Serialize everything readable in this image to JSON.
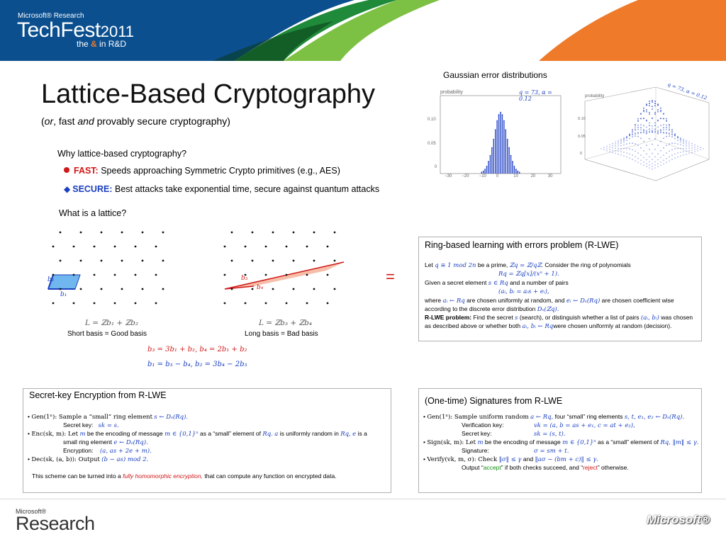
{
  "header": {
    "msr_label": "Microsoft® Research",
    "techfest": "TechFest",
    "year": "2011",
    "tag_the": "the",
    "tag_amp": "&",
    "tag_rest": "in R&D"
  },
  "title": "Lattice-Based Cryptography",
  "subtitle": {
    "or": "or",
    "fast": ", fast",
    "and": "and",
    "rest": "provably secure cryptography)"
  },
  "why": {
    "heading": "Why lattice-based cryptography?",
    "fast_label": "FAST:",
    "fast_text": "Speeds approaching Symmetric  Crypto primitives (e.g., AES)",
    "secure_label": "SECURE:",
    "secure_text": "Best attacks take exponential time, secure against quantum attacks"
  },
  "what_heading": "What is a lattice?",
  "lattice": {
    "left_formula": "L = ℤb₁ + ℤb₂",
    "left_caption": "Short basis = Good basis",
    "right_formula": "L = ℤb₃ + ℤb₄",
    "right_caption": "Long basis = Bad basis",
    "eq1": "b₃ = 3b₁ + b₂,  b₄ = 2b₁ + b₂",
    "eq2": "b₁ = b₃ − b₄,  b₂ = 3b₄ − 2b₃",
    "labels": {
      "b1": "b₁",
      "b2": "b₂",
      "b3": "b₃",
      "b4": "b₄"
    },
    "equals": "="
  },
  "gaussian": {
    "title": "Gaussian error distributions",
    "ylabel": "probability",
    "param_label": "q = 73, α = 0.12",
    "yticks": [
      "0.10",
      "0.05",
      "0"
    ],
    "xticks": [
      "−30",
      "−20",
      "−10",
      "0",
      "10",
      "20",
      "30"
    ],
    "right_ylabel": "probability",
    "right_param": "q = 73, α = 0.12",
    "right_yticks": [
      "0.10",
      "0.05",
      "0"
    ]
  },
  "chart_data": {
    "type": "bar",
    "ylabel": "probability",
    "annotation": "q = 73, α = 0.12",
    "xlim": [
      -35,
      35
    ],
    "ylim": [
      0,
      0.13
    ],
    "x": [
      -11,
      -10,
      -9,
      -8,
      -7,
      -6,
      -5,
      -4,
      -3,
      -2,
      -1,
      0,
      1,
      2,
      3,
      4,
      5,
      6,
      7,
      8,
      9,
      10,
      11
    ],
    "values": [
      0.002,
      0.004,
      0.007,
      0.012,
      0.02,
      0.03,
      0.043,
      0.057,
      0.073,
      0.088,
      0.098,
      0.102,
      0.098,
      0.088,
      0.073,
      0.057,
      0.043,
      0.03,
      0.02,
      0.012,
      0.007,
      0.004,
      0.002
    ]
  },
  "rlwe": {
    "title": "Ring-based learning with errors problem (R-LWE)",
    "l1a": "Let",
    "l1q": "q ≡ 1 mod 2n",
    "l1b": "be a prime,",
    "l1z": "ℤq = ℤ/qℤ",
    "l1c": ". Consider the ring of polynomials",
    "l2": "Rq = ℤq[x]/(xⁿ + 1).",
    "l3a": "Given a secret element",
    "l3s": "s ∈ Rq",
    "l3b": "and a number of pairs",
    "l4": "(aᵢ, bᵢ = aᵢs + eᵢ),",
    "l5a": "where",
    "l5m1": "aᵢ ← Rq",
    "l5b": "are chosen uniformly at random, and",
    "l5m2": "eᵢ ← Dₛ(Rq)",
    "l5c": "are chosen coefficient wise",
    "l6a": "according to the discrete error distribution",
    "l6m": "Dₛ(ℤq).",
    "l7bold": "R-LWE problem:",
    "l7a": "Find the secret",
    "l7m1": "s",
    "l7b": "(search), or distinguish whether a list of pairs",
    "l7m2": "(aᵢ, bᵢ)",
    "l7c": "was chosen",
    "l8a": "as described above or whether both",
    "l8m": "aᵢ, bᵢ ← Rq",
    "l8b": "were chosen uniformly at random (decision)."
  },
  "ske": {
    "title": "Secret-key Encryption from R-LWE",
    "g1": "Gen(1ⁿ): Sample a “small” ring element",
    "g1m": "s ← Dₛ(Rq).",
    "g2": "Secret key:",
    "g2m": "sk = s.",
    "e1": "Enc(sk, m): Let",
    "e1m1": "m",
    "e1b": "be the encoding of message",
    "e1m2": "m ∈ {0,1}ⁿ",
    "e1c": "as a “small” element of",
    "e1m3": "Rq.",
    "e1m4": "a",
    "e1d": "is uniformly random in",
    "e1m5": "Rq,",
    "e1m6": "e",
    "e1e": "is a",
    "e2": "small ring element",
    "e2m": "e ← Dₛ(Rq).",
    "e3": "Encryption:",
    "e3m": "(a,  as + 2e + m).",
    "d1": "Dec(sk, (a, b)): Output",
    "d1m": "(b − as) mod 2.",
    "fhe_a": "This scheme can be turned into a",
    "fhe_red": "fully homomorphic encryption,",
    "fhe_b": "that can compute any function on encrypted data."
  },
  "sig": {
    "title": "(One-time) Signatures from R-LWE",
    "g1": "Gen(1ⁿ): Sample uniform random",
    "g1m1": "a ← Rq,",
    "g1b": "four “small” ring elements",
    "g1m2": "s, t, e₁, e₂ ← Dₛ(Rq).",
    "g2": "Verification key:",
    "g2m": "vk = (a, b = as + e₁, c = at + e₂),",
    "g3": "Secret key:",
    "g3m": "sk = (s, t).",
    "s1": "Sign(sk, m): Let",
    "s1m1": "m",
    "s1b": "be the encoding of message",
    "s1m2": "m ∈ {0,1}ⁿ",
    "s1c": "as a “small” element of",
    "s1m3": "Rq, ‖m‖ ≤ γ.",
    "s2": "Signature:",
    "s2m": "σ = sm + t.",
    "v1": "Verify(vk, m, σ): Check",
    "v1m1": "‖σ‖ ≤ γ",
    "v1b": "and",
    "v1m2": "‖aσ − (bm + c)‖ ≤ γ.",
    "v2a": "Output “",
    "v2accept": "accept",
    "v2b": "” if both checks succeed, and “",
    "v2reject": "reject",
    "v2c": "” otherwise."
  },
  "footer": {
    "ms_small": "Microsoft®",
    "research": "Research",
    "ms_logo": "Microsoft®"
  },
  "colors": {
    "blue_band": "#0b4f8f",
    "green": "#2e9a3c",
    "orange": "#ee7a2a",
    "math_blue": "#1a3fbf",
    "red": "#d01818"
  }
}
